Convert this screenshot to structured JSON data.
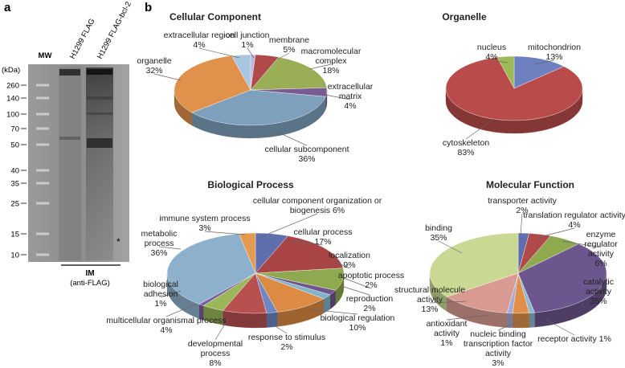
{
  "panel_a": {
    "label": "a",
    "lanes": [
      "MW",
      "H1299 FLAG",
      "H1299 FLAG-bcl-2"
    ],
    "unit": "(kDa)",
    "markers": [
      260,
      140,
      100,
      70,
      50,
      40,
      35,
      25,
      15,
      10
    ],
    "asterisk": "*",
    "antibody": "IM",
    "antibody_note": "(anti-FLAG)"
  },
  "panel_b_label": "b",
  "chart_data": [
    {
      "type": "pie",
      "title": "Cellular Component",
      "categories": [
        "cell junction",
        "membrane",
        "macromolecular complex",
        "extracellular matrix",
        "cellular subcomponent",
        "organelle",
        "extracellular region"
      ],
      "values": [
        1,
        5,
        18,
        4,
        36,
        32,
        4
      ],
      "value_labels": [
        "1%",
        "5%",
        "18%",
        "4%",
        "36%",
        "32%",
        "4%"
      ],
      "colors": [
        "#bdb6dc",
        "#b04a4a",
        "#9aae55",
        "#7a5a92",
        "#7fa0bc",
        "#e0914c",
        "#a9c6e0"
      ]
    },
    {
      "type": "pie",
      "title": "Organelle",
      "categories": [
        "mitochondrion",
        "cytoskeleton",
        "nucleus"
      ],
      "values": [
        13,
        83,
        4
      ],
      "value_labels": [
        "13%",
        "83%",
        "4%"
      ],
      "colors": [
        "#6e80bf",
        "#b94c4a",
        "#9cbb56"
      ]
    },
    {
      "type": "pie",
      "title": "Biological Process",
      "categories": [
        "cellular component organization or biogenesis",
        "cellular process",
        "localization",
        "apoptotic process",
        "reproduction",
        "biological regulation",
        "response to stimulus",
        "developmental process",
        "multicellular organismal process",
        "biological adhesion",
        "metabolic process",
        "immune system process"
      ],
      "values": [
        6,
        17,
        9,
        2,
        2,
        10,
        2,
        8,
        4,
        1,
        36,
        3
      ],
      "value_labels": [
        "6%",
        "17%",
        "9%",
        "2%",
        "2%",
        "10%",
        "2%",
        "8%",
        "4%",
        "1%",
        "36%",
        "3%"
      ],
      "colors": [
        "#5f6fae",
        "#a94545",
        "#8fa94e",
        "#6f548b",
        "#82b3c9",
        "#dc8a44",
        "#6f86c4",
        "#b85050",
        "#9cb75a",
        "#7d5f9b",
        "#8db1cc",
        "#e59a52"
      ]
    },
    {
      "type": "pie",
      "title": "Molecular Function",
      "categories": [
        "transporter activity",
        "translation regulator activity",
        "enzyme regulator activity",
        "catalytic activity",
        "receptor activity",
        "nucleic binding transcription factor activity",
        "antioxidant activity",
        "structural molecule activity",
        "binding"
      ],
      "values": [
        2,
        4,
        6,
        35,
        1,
        3,
        1,
        13,
        35
      ],
      "value_labels": [
        "2%",
        "4%",
        "6%",
        "35%",
        "1%",
        "3%",
        "1%",
        "13%",
        "35%"
      ],
      "colors": [
        "#5f6fae",
        "#b04a4a",
        "#8fa94e",
        "#6d568e",
        "#8fb8d0",
        "#e08f48",
        "#a7a9d6",
        "#d99a92",
        "#c9d994"
      ]
    }
  ]
}
